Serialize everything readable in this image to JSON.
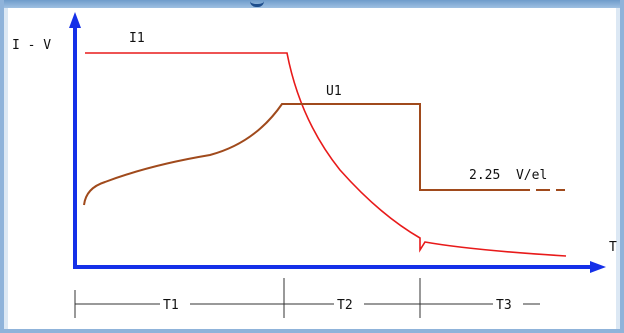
{
  "diagram": {
    "y_axis_label": "I - V",
    "x_axis_label": "T",
    "current_label": "I1",
    "voltage_label": "U1",
    "float_voltage_label": "2.25  V/el",
    "phases": [
      "T1",
      "T2",
      "T3"
    ],
    "colors": {
      "axis": "#1530e8",
      "current": "#e81a1a",
      "voltage": "#a04a1c",
      "ticks": "#333333",
      "frame": "#8fb3da"
    }
  }
}
